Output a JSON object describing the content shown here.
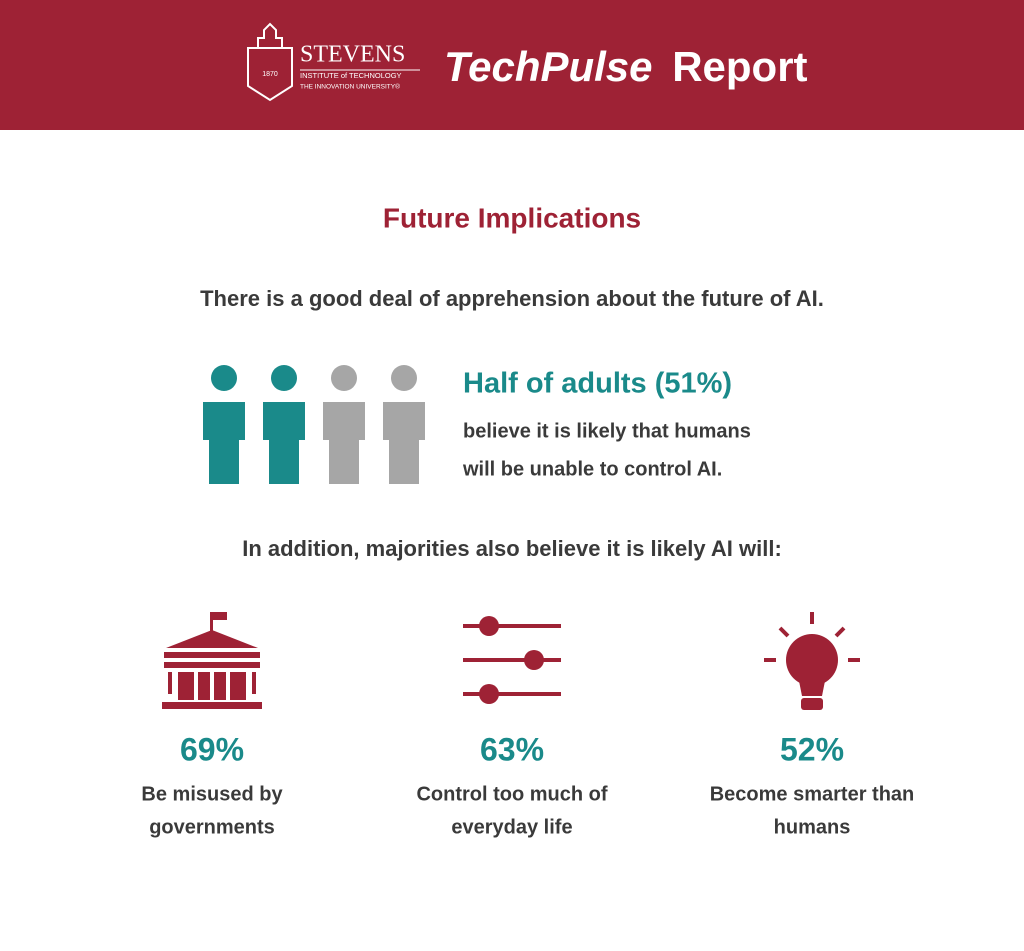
{
  "header": {
    "logo": {
      "name": "STEVENS",
      "line1": "INSTITUTE of TECHNOLOGY",
      "line2": "THE INNOVATION UNIVERSITY®",
      "year": "1870"
    },
    "title_italic": "TechPulse",
    "title_plain": "Report"
  },
  "section_title": "Future Implications",
  "intro": "There is a good deal of apprehension about the future of AI.",
  "highlight": {
    "headline": "Half of adults (51%)",
    "lines": [
      "believe it is likely that humans",
      "will be unable to control AI."
    ]
  },
  "subheading": "In addition, majorities also believe it is likely AI will:",
  "stats": [
    {
      "percent": "69%",
      "lines": [
        "Be misused by",
        "governments"
      ]
    },
    {
      "percent": "63%",
      "lines": [
        "Control too much of",
        "everyday life"
      ]
    },
    {
      "percent": "52%",
      "lines": [
        "Become smarter than",
        "humans"
      ]
    }
  ]
}
